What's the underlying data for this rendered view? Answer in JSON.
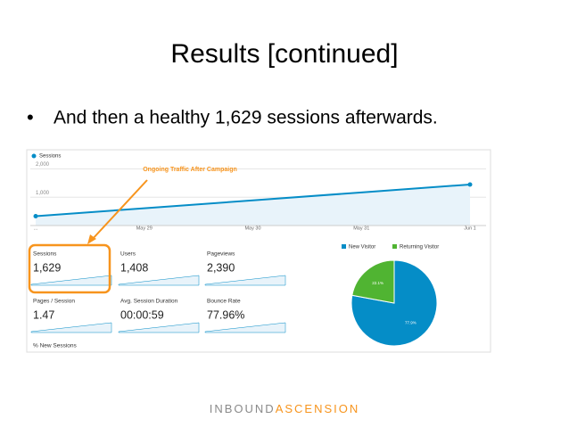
{
  "slide": {
    "title": "Results [continued]",
    "bullets": [
      "And then a healthy 1,629 sessions afterwards."
    ]
  },
  "screenshot": {
    "session_chart": {
      "type": "line",
      "legend": "Sessions",
      "categories": [
        "...",
        "May 29",
        "May 30",
        "May 31",
        "Jun 1"
      ],
      "series": [
        {
          "name": "Sessions",
          "color": "#058dc7",
          "values": [
            330,
            610,
            890,
            1170,
            1450
          ]
        }
      ],
      "ylim": [
        0,
        2300
      ],
      "yticks": [
        {
          "value": 1000,
          "label": "1,000"
        },
        {
          "value": 2000,
          "label": "2,000"
        }
      ]
    },
    "annotation": "Ongoing Traffic After Campaign",
    "metrics": [
      {
        "label": "Sessions",
        "value": "1,629"
      },
      {
        "label": "Users",
        "value": "1,408"
      },
      {
        "label": "Pageviews",
        "value": "2,390"
      },
      {
        "label": "Pages / Session",
        "value": "1.47"
      },
      {
        "label": "Avg. Session Duration",
        "value": "00:00:59"
      },
      {
        "label": "Bounce Rate",
        "value": "77.96%"
      },
      {
        "label": "% New Sessions"
      }
    ],
    "visitor_pie": {
      "type": "pie",
      "categories": [
        "New Visitor",
        "Returning Visitor"
      ],
      "values": [
        77.9,
        22.1
      ],
      "value_labels": [
        "77.9%",
        "22.1%"
      ],
      "colors": [
        "#058dc7",
        "#50b432"
      ]
    }
  },
  "footer": {
    "brand": [
      "INBOUND",
      "ASCENSION"
    ]
  }
}
